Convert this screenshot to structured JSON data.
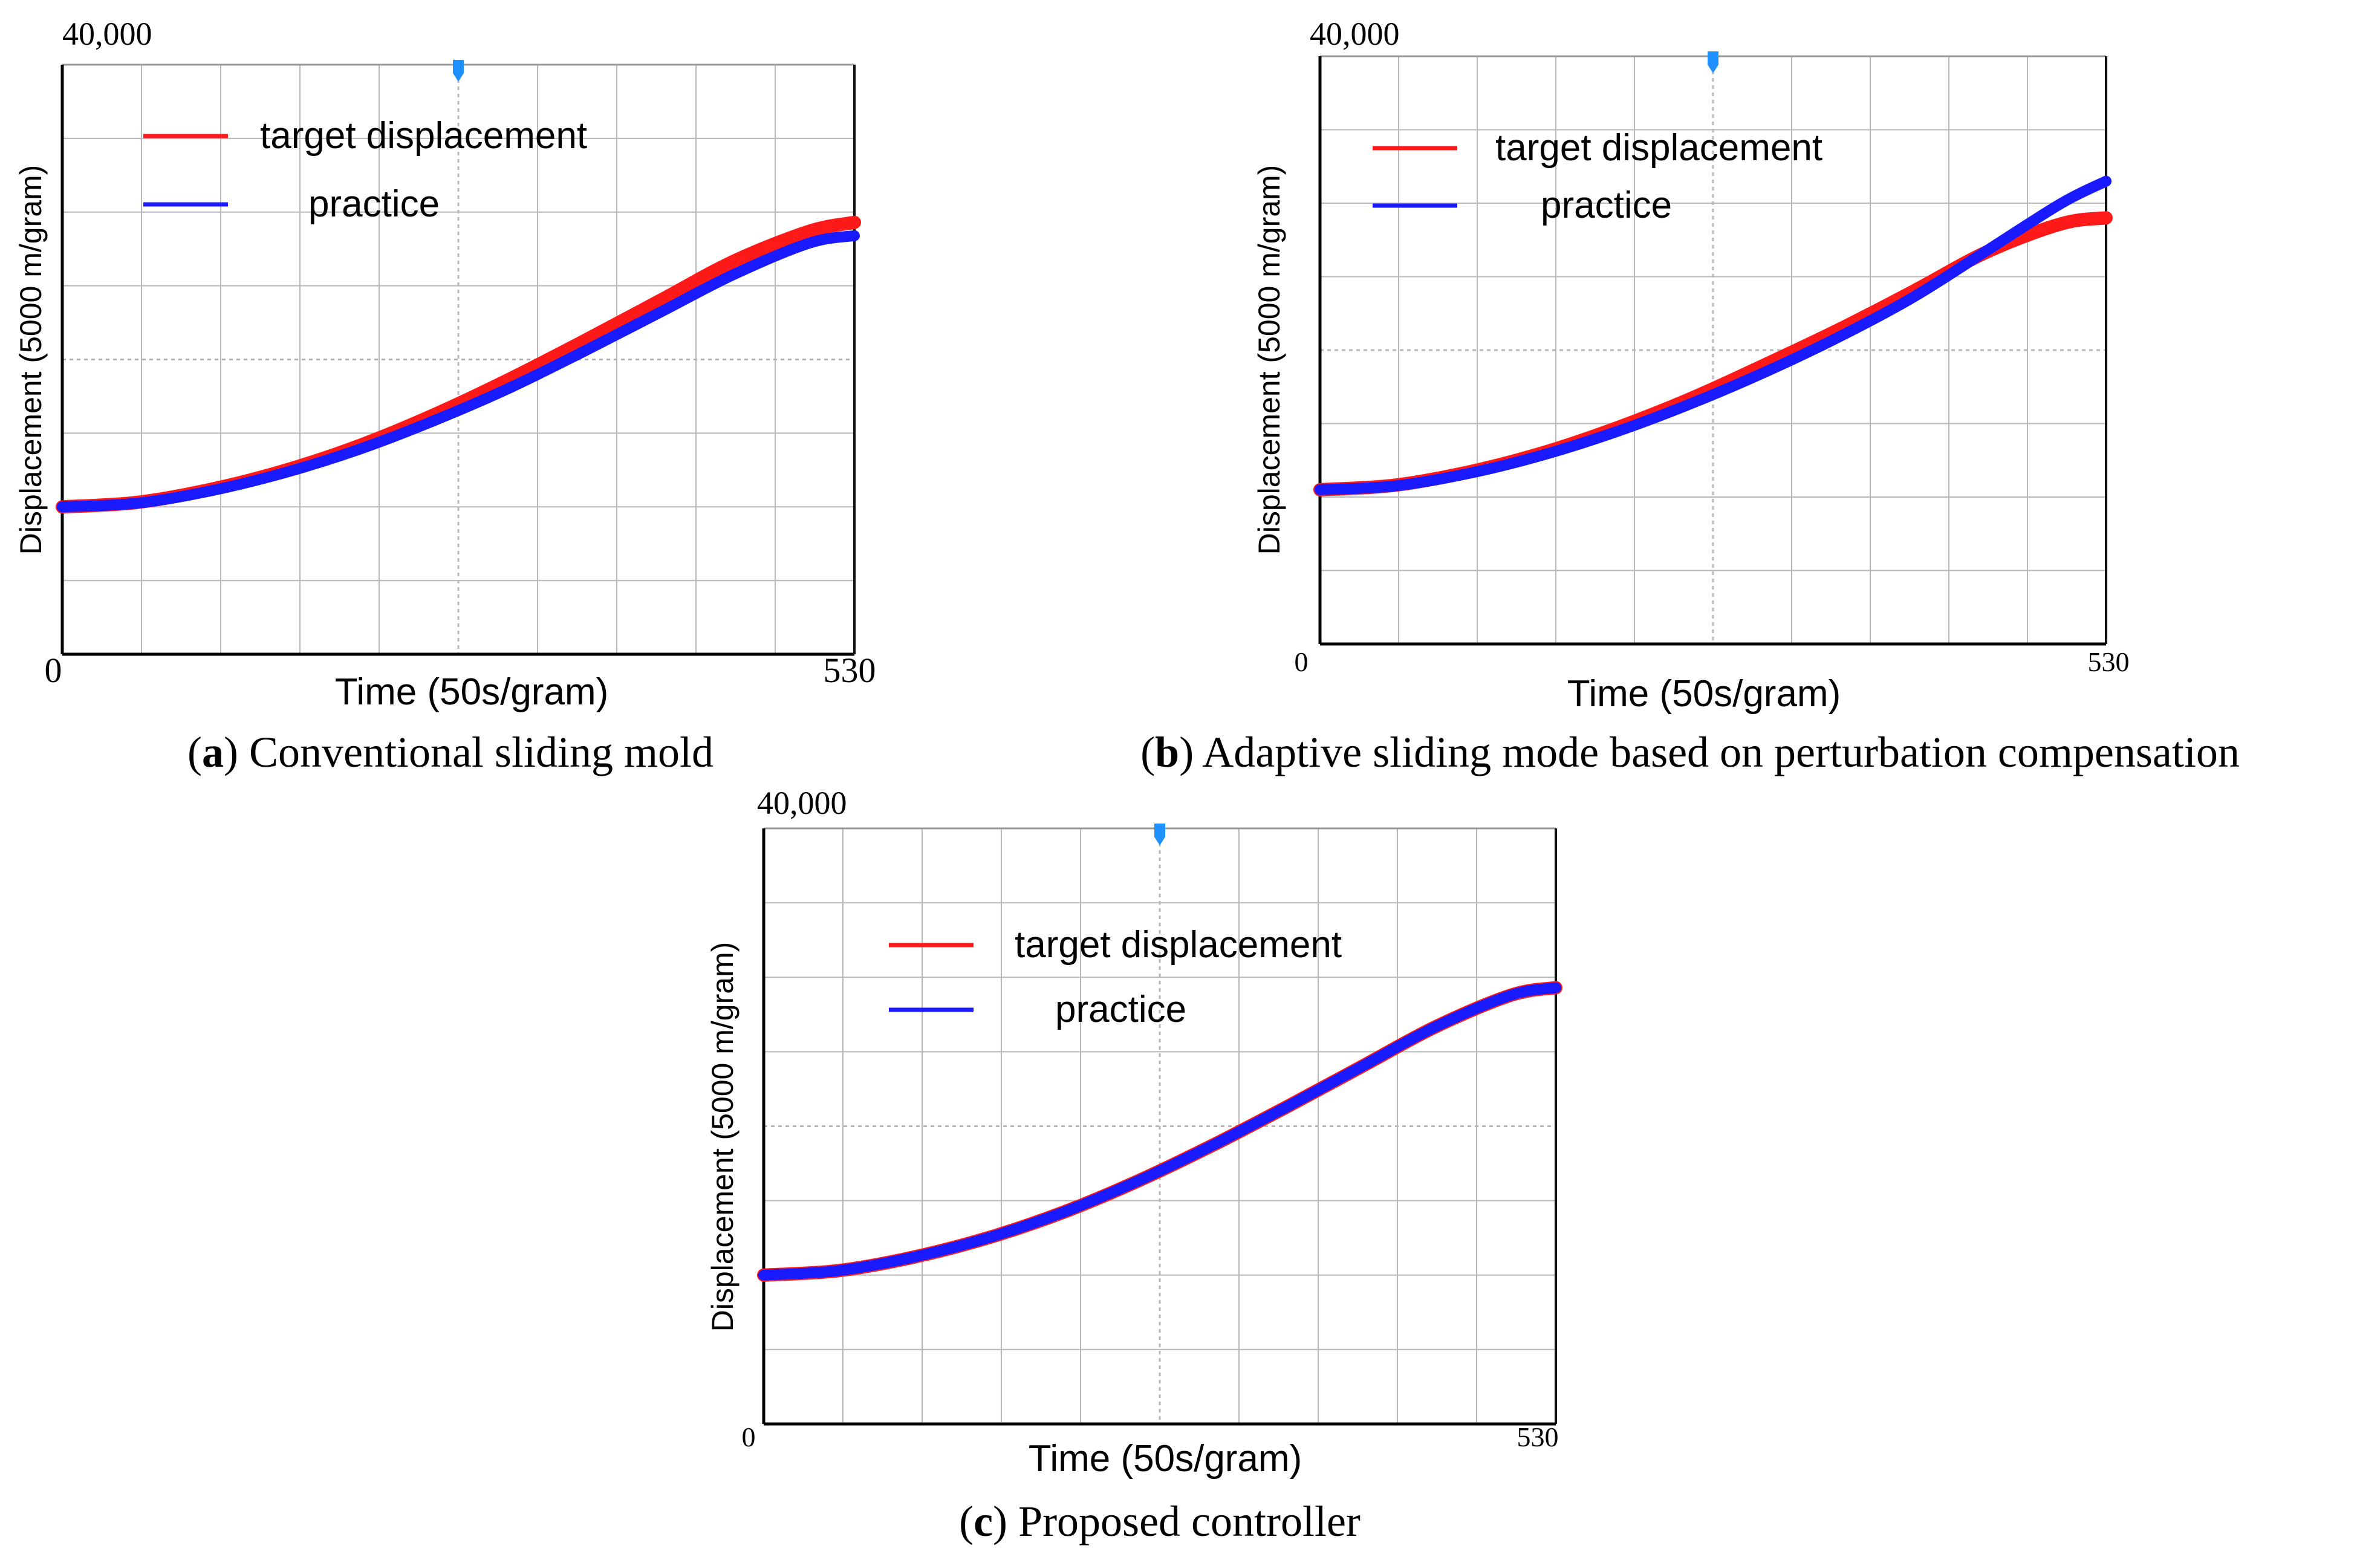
{
  "colors": {
    "target": "#ff1a1a",
    "practice": "#1a1aff",
    "grid": "#b8b8b8",
    "axis": "#000000",
    "marker": "#1e90ff"
  },
  "chart_data": [
    {
      "type": "line",
      "ylabel": "Displacement (5000 m/gram)",
      "xlabel": "Time (50s/gram)",
      "ytop_label": "40,000",
      "x0_label": "0",
      "x1_label": "530",
      "caption_letter": "a",
      "caption_text": "Conventional sliding mold",
      "legend": [
        "target displacement",
        "practice"
      ],
      "legend_position": "top-left",
      "marker_icon": "trigger-marker-icon",
      "xlim": [
        0,
        530
      ],
      "ylim": [
        0,
        40000
      ],
      "series": [
        {
          "name": "target displacement",
          "x": [
            0,
            50,
            100,
            150,
            200,
            250,
            300,
            350,
            400,
            450,
            500,
            530
          ],
          "values": [
            10000,
            10300,
            11200,
            12500,
            14200,
            16300,
            18700,
            21300,
            24000,
            26700,
            28700,
            29300
          ]
        },
        {
          "name": "practice",
          "x": [
            0,
            50,
            100,
            150,
            200,
            250,
            300,
            350,
            400,
            450,
            500,
            530
          ],
          "values": [
            10000,
            10250,
            11100,
            12350,
            13950,
            15900,
            18100,
            20600,
            23200,
            25800,
            27900,
            28400
          ]
        }
      ]
    },
    {
      "type": "line",
      "ylabel": "Displacement (5000 m/gram)",
      "xlabel": "Time (50s/gram)",
      "ytop_label": "40,000",
      "x0_label": "0",
      "x1_label": "530",
      "caption_letter": "b",
      "caption_text": "Adaptive sliding mode based on perturbation compensation",
      "legend": [
        "target displacement",
        "practice"
      ],
      "legend_position": "top-left",
      "marker_icon": "trigger-marker-icon",
      "xlim": [
        0,
        530
      ],
      "ylim": [
        0,
        40000
      ],
      "series": [
        {
          "name": "target displacement",
          "x": [
            0,
            50,
            100,
            150,
            200,
            250,
            300,
            350,
            400,
            450,
            500,
            530
          ],
          "values": [
            10500,
            10800,
            11700,
            13000,
            14700,
            16700,
            19000,
            21400,
            24000,
            26700,
            28600,
            29000
          ]
        },
        {
          "name": "practice",
          "x": [
            0,
            50,
            100,
            150,
            200,
            250,
            300,
            350,
            400,
            450,
            500,
            530
          ],
          "values": [
            10500,
            10750,
            11600,
            12850,
            14450,
            16350,
            18500,
            20900,
            23600,
            26800,
            30000,
            31500
          ]
        }
      ]
    },
    {
      "type": "line",
      "ylabel": "Displacement (5000 m/gram)",
      "xlabel": "Time (50s/gram)",
      "ytop_label": "40,000",
      "x0_label": "0",
      "x1_label": "530",
      "caption_letter": "c",
      "caption_text": "Proposed controller",
      "legend": [
        "target displacement",
        "practice"
      ],
      "legend_position": "top-left",
      "marker_icon": "trigger-marker-icon",
      "xlim": [
        0,
        530
      ],
      "ylim": [
        0,
        40000
      ],
      "series": [
        {
          "name": "target displacement",
          "x": [
            0,
            50,
            100,
            150,
            200,
            250,
            300,
            350,
            400,
            450,
            500,
            530
          ],
          "values": [
            10000,
            10300,
            11200,
            12500,
            14200,
            16300,
            18700,
            21300,
            24000,
            26700,
            28800,
            29300
          ]
        },
        {
          "name": "practice",
          "x": [
            0,
            50,
            100,
            150,
            200,
            250,
            300,
            350,
            400,
            450,
            500,
            530
          ],
          "values": [
            10000,
            10300,
            11200,
            12500,
            14200,
            16300,
            18700,
            21300,
            24000,
            26700,
            28800,
            29300
          ]
        }
      ]
    }
  ]
}
